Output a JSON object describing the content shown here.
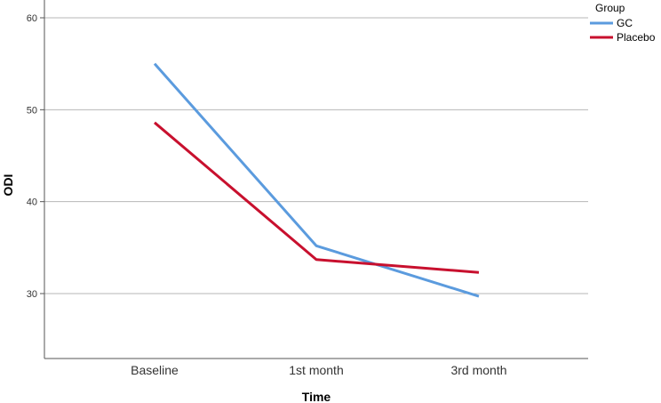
{
  "chart_data": {
    "type": "line",
    "categories": [
      "Baseline",
      "1st month",
      "3rd month"
    ],
    "series": [
      {
        "name": "GC",
        "color": "#5b9bde",
        "values": [
          55.0,
          35.2,
          29.7
        ]
      },
      {
        "name": "Placebo",
        "color": "#c8102e",
        "values": [
          48.6,
          33.7,
          32.3
        ]
      }
    ],
    "xlabel": "Time",
    "ylabel": "ODI",
    "ylim": [
      30,
      60
    ],
    "yticks": [
      30,
      40,
      50,
      60
    ],
    "grid": true,
    "legend": {
      "title": "Group",
      "position": "top-right"
    }
  }
}
